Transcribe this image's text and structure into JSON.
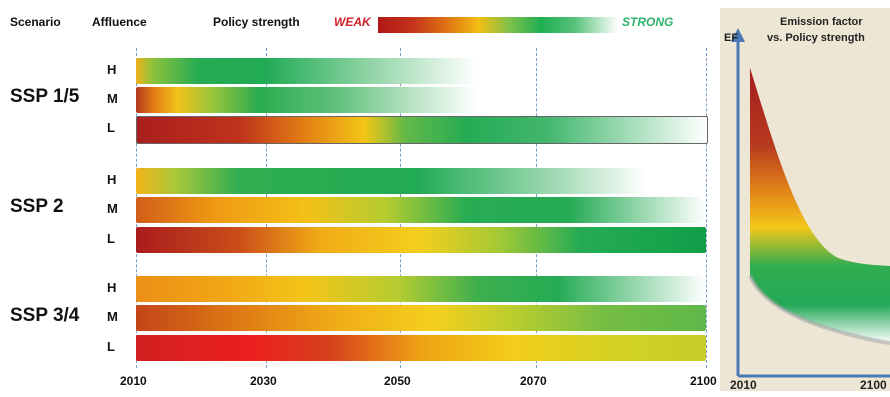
{
  "header": {
    "scenario": "Scenario",
    "affluence": "Affluence",
    "policy": "Policy strength",
    "weak": "WEAK",
    "strong": "STRONG"
  },
  "scenarios": [
    {
      "label": "SSP 1/5",
      "levels": [
        "H",
        "M",
        "L"
      ]
    },
    {
      "label": "SSP 2",
      "levels": [
        "H",
        "M",
        "L"
      ]
    },
    {
      "label": "SSP 3/4",
      "levels": [
        "H",
        "M",
        "L"
      ]
    }
  ],
  "x_ticks": [
    "2010",
    "2030",
    "2050",
    "2070",
    "2100"
  ],
  "inset": {
    "title_line1": "Emission factor",
    "title_line2": "vs. Policy strength",
    "y_label": "EF",
    "x_start": "2010",
    "x_end": "2100"
  }
}
